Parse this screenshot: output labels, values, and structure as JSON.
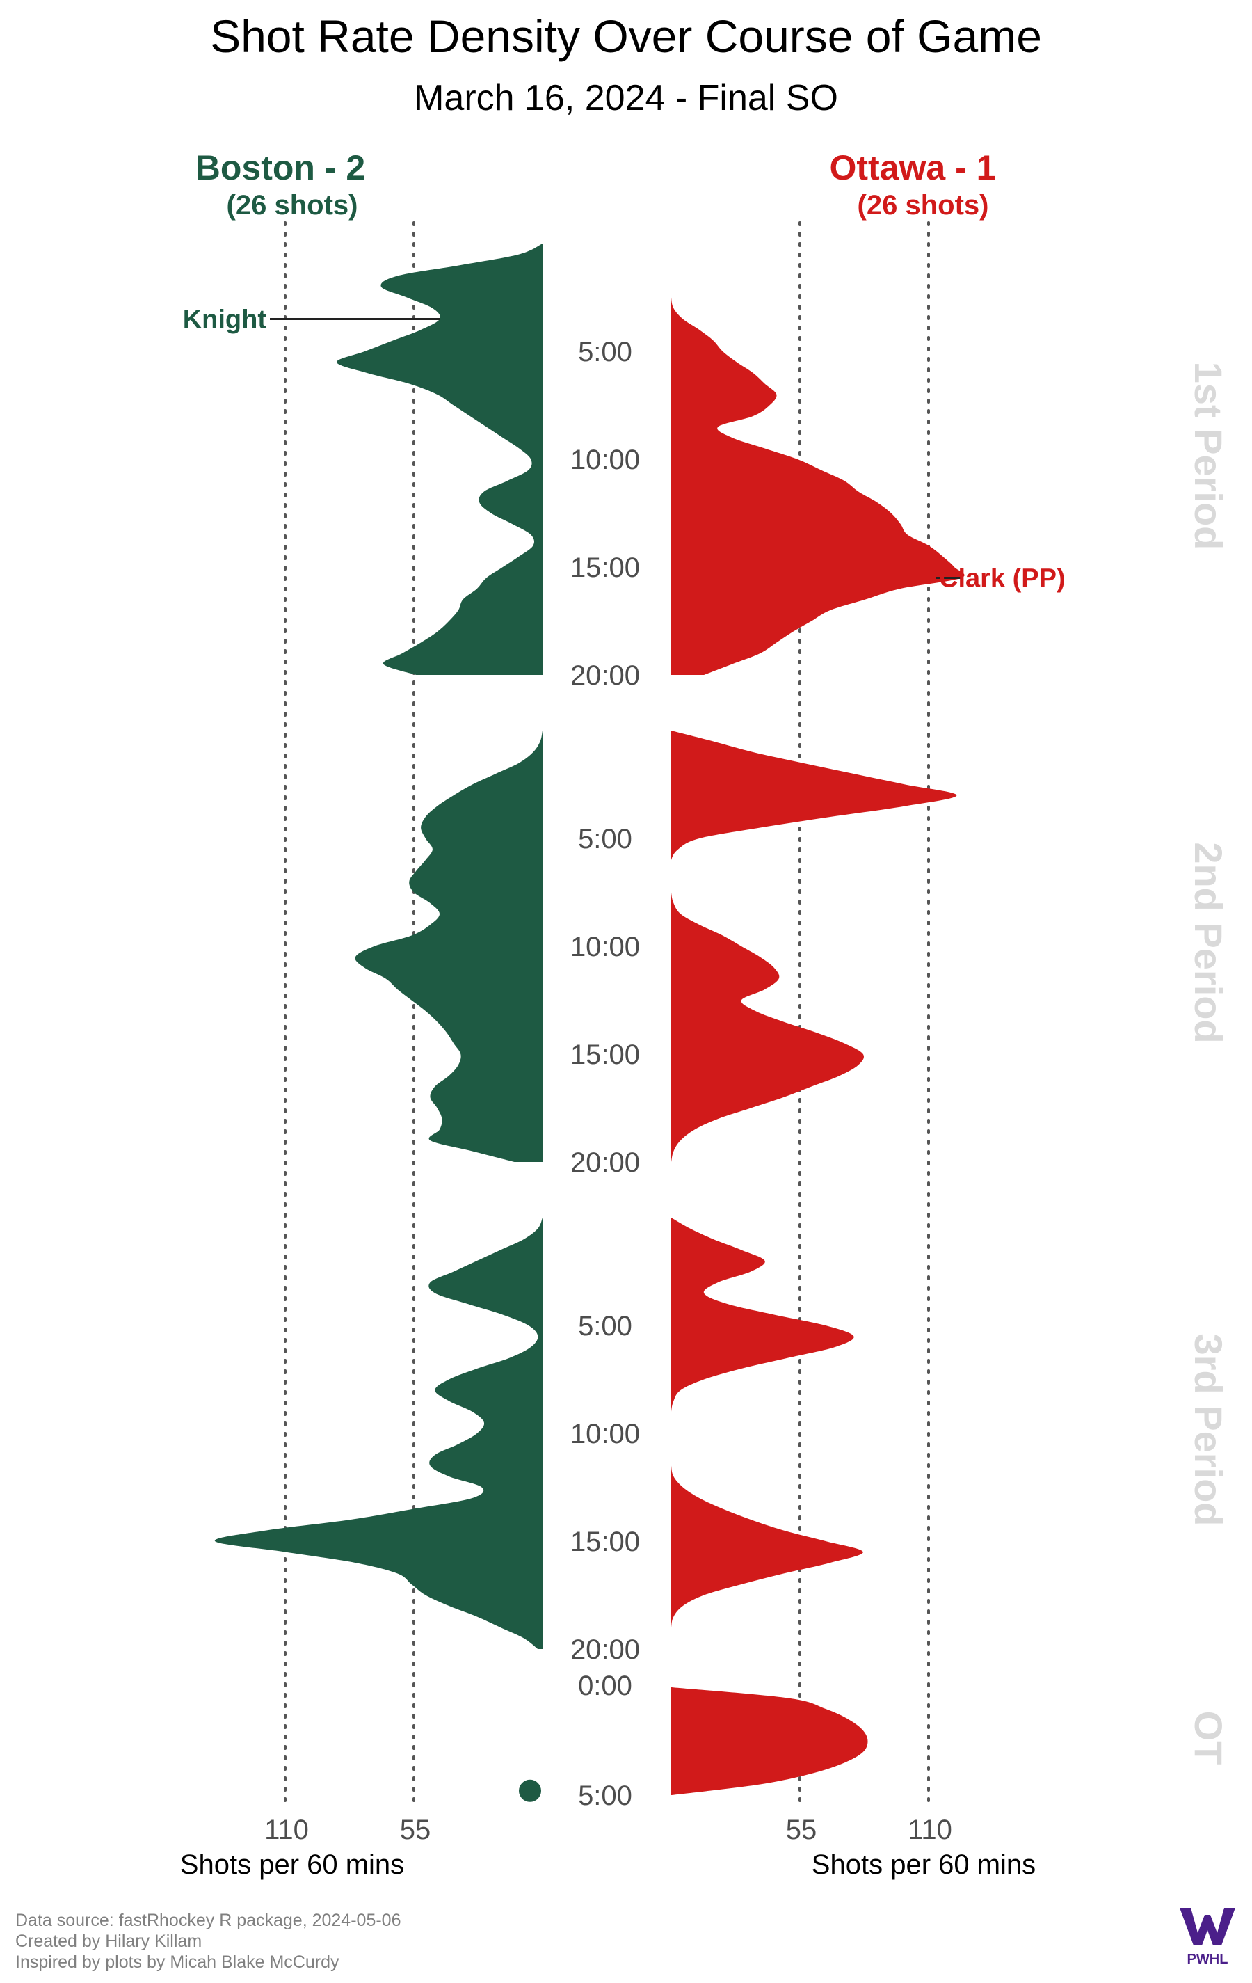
{
  "chart_data": {
    "type": "area",
    "title": "Shot Rate Density Over Course of Game",
    "subtitle": "March 16, 2024 - Final SO",
    "xlabel_left": "Shots per 60 mins",
    "xlabel_right": "Shots per 60 mins",
    "x_ticks": [
      "110",
      "55",
      "55",
      "110"
    ],
    "xlim": [
      0,
      110
    ],
    "grid_values": [
      55,
      110
    ],
    "teams": [
      {
        "name": "Boston - 2",
        "shots": "(26 shots)",
        "color": "#1e5a43",
        "side": "left"
      },
      {
        "name": "Ottawa - 1",
        "shots": "(26 shots)",
        "color": "#d11a1a",
        "side": "right"
      }
    ],
    "periods": [
      {
        "label": "1st Period",
        "length": 20,
        "ticks": [
          "5:00",
          "10:00",
          "15:00",
          "20:00"
        ],
        "boston": {
          "t": [
            0,
            0.5,
            1,
            1.5,
            2,
            2.5,
            3,
            3.5,
            4,
            4.5,
            5,
            5.5,
            6,
            6.5,
            7,
            7.5,
            8,
            8.5,
            9,
            9.5,
            10,
            10.5,
            11,
            11.5,
            12,
            12.5,
            13,
            13.5,
            14,
            14.5,
            15,
            15.5,
            16,
            16.5,
            17,
            17.5,
            18,
            18.5,
            19,
            19.5,
            20
          ],
          "v": [
            0,
            10,
            35,
            62,
            69,
            58,
            47,
            44,
            52,
            64,
            76,
            88,
            75,
            57,
            45,
            38,
            31,
            24,
            17,
            10,
            5,
            6,
            15,
            25,
            27,
            22,
            13,
            5,
            4,
            10,
            17,
            24,
            28,
            34,
            36,
            40,
            45,
            52,
            60,
            68,
            54
          ]
        },
        "ottawa": {
          "t": [
            0,
            0.5,
            1,
            1.5,
            2,
            2.5,
            3,
            3.5,
            4,
            4.5,
            5,
            5.5,
            6,
            6.5,
            7,
            7.5,
            8,
            8.5,
            9,
            9.5,
            10,
            10.5,
            11,
            11.5,
            12,
            12.5,
            13,
            13.5,
            14,
            14.5,
            15,
            15.5,
            16,
            16.5,
            17,
            17.5,
            18,
            18.5,
            19,
            19.5,
            20
          ],
          "v": [
            0,
            0,
            0,
            0,
            0,
            0,
            1,
            5,
            12,
            18,
            22,
            28,
            35,
            40,
            45,
            42,
            35,
            20,
            26,
            40,
            54,
            64,
            74,
            80,
            88,
            94,
            98,
            101,
            110,
            116,
            121,
            124,
            98,
            83,
            68,
            60,
            52,
            45,
            38,
            26,
            14
          ]
        }
      },
      {
        "label": "2nd Period",
        "length": 20,
        "ticks": [
          "5:00",
          "10:00",
          "15:00",
          "20:00"
        ],
        "boston": {
          "t": [
            0,
            0.5,
            1,
            1.5,
            2,
            2.5,
            3,
            3.5,
            4,
            4.5,
            5,
            5.5,
            6,
            6.5,
            7,
            7.5,
            8,
            8.5,
            9,
            9.5,
            10,
            10.5,
            11,
            11.5,
            12,
            12.5,
            13,
            13.5,
            14,
            14.5,
            15,
            15.5,
            16,
            16.5,
            17,
            17.5,
            18,
            18.5,
            19,
            19.5,
            20
          ],
          "v": [
            0,
            1,
            4,
            10,
            20,
            30,
            38,
            45,
            50,
            52,
            50,
            47,
            50,
            54,
            57,
            55,
            48,
            44,
            48,
            56,
            72,
            80,
            76,
            67,
            62,
            56,
            50,
            45,
            41,
            38,
            35,
            36,
            40,
            46,
            48,
            45,
            43,
            44,
            48,
            30,
            12
          ]
        },
        "ottawa": {
          "t": [
            0,
            0.5,
            1,
            1.5,
            2,
            2.5,
            3,
            3.5,
            4,
            4.5,
            5,
            5.5,
            6,
            6.5,
            7,
            7.5,
            8,
            8.5,
            9,
            9.5,
            10,
            10.5,
            11,
            11.5,
            12,
            12.5,
            13,
            13.5,
            14,
            14.5,
            15,
            15.5,
            16,
            16.5,
            17,
            17.5,
            18,
            18.5,
            19,
            19.5,
            20
          ],
          "v": [
            0,
            18,
            35,
            56,
            78,
            100,
            122,
            100,
            68,
            38,
            12,
            3,
            0,
            0,
            0,
            0,
            1,
            4,
            12,
            22,
            30,
            38,
            44,
            46,
            40,
            30,
            36,
            48,
            62,
            74,
            82,
            80,
            72,
            60,
            48,
            34,
            20,
            10,
            4,
            1,
            0
          ]
        }
      },
      {
        "label": "3rd Period",
        "length": 20,
        "ticks": [
          "5:00",
          "10:00",
          "15:00",
          "20:00"
        ],
        "boston": {
          "t": [
            0,
            0.5,
            1,
            1.5,
            2,
            2.5,
            3,
            3.5,
            4,
            4.5,
            5,
            5.5,
            6,
            6.5,
            7,
            7.5,
            8,
            8.5,
            9,
            9.5,
            10,
            10.5,
            11,
            11.5,
            12,
            12.5,
            13,
            13.5,
            14,
            14.5,
            15,
            15.5,
            16,
            16.5,
            17,
            17.5,
            18,
            18.5,
            19,
            19.5,
            20
          ],
          "v": [
            0,
            2,
            8,
            18,
            28,
            38,
            48,
            46,
            32,
            17,
            6,
            2,
            5,
            14,
            28,
            40,
            46,
            40,
            30,
            25,
            28,
            36,
            46,
            48,
            40,
            26,
            30,
            55,
            82,
            118,
            140,
            110,
            80,
            62,
            56,
            50,
            40,
            28,
            18,
            8,
            2
          ]
        },
        "ottawa": {
          "t": [
            0,
            0.5,
            1,
            1.5,
            2,
            2.5,
            3,
            3.5,
            4,
            4.5,
            5,
            5.5,
            6,
            6.5,
            7,
            7.5,
            8,
            8.5,
            9,
            9.5,
            10,
            10.5,
            11,
            11.5,
            12,
            12.5,
            13,
            13.5,
            14,
            14.5,
            15,
            15.5,
            16,
            16.5,
            17,
            17.5,
            18,
            18.5,
            19,
            19.5,
            20
          ],
          "v": [
            0,
            8,
            18,
            30,
            40,
            34,
            20,
            14,
            24,
            44,
            66,
            78,
            70,
            50,
            30,
            14,
            4,
            1,
            0,
            0,
            0,
            0,
            0,
            0,
            1,
            5,
            12,
            22,
            34,
            48,
            66,
            82,
            68,
            48,
            30,
            14,
            5,
            1,
            0,
            0,
            0
          ]
        }
      },
      {
        "label": "OT",
        "length": 5,
        "ticks": [
          "0:00",
          "5:00"
        ],
        "boston_dot": {
          "t": 4.8,
          "v": 0
        },
        "ottawa": {
          "t": [
            0,
            0.5,
            1,
            1.5,
            2,
            2.5,
            3,
            3.5,
            4,
            4.5,
            5
          ],
          "v": [
            0,
            50,
            66,
            76,
            82,
            84,
            82,
            74,
            60,
            38,
            0
          ]
        }
      }
    ],
    "annotations": [
      {
        "label": "Knight",
        "team": "boston",
        "period": 0,
        "t": 3.5
      },
      {
        "label": "Clark (PP)",
        "team": "ottawa",
        "period": 0,
        "t": 15.5
      }
    ]
  },
  "footer": {
    "line1": "Data source: fastRhockey R package, 2024-05-06",
    "line2": "Created by Hilary Killam",
    "line3": "Inspired by plots by Micah Blake McCurdy",
    "logo_text": "PWHL",
    "logo_color": "#4b1f8a"
  }
}
